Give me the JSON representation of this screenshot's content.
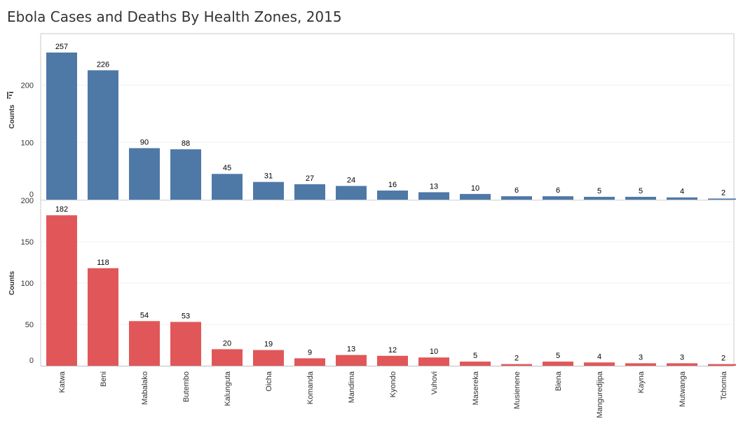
{
  "title": "Ebola Cases and Deaths By Health Zones, 2015",
  "chart_data": [
    {
      "type": "bar",
      "ylabel": "Counts",
      "ylim": [
        0,
        290
      ],
      "yticks": [
        0,
        100,
        200
      ],
      "color": "#4e79a7",
      "categories": [
        "Katwa",
        "Beni",
        "Mabalako",
        "Butembo",
        "Kalunguta",
        "Oicha",
        "Komanda",
        "Mandima",
        "Kyondo",
        "Vuhovi",
        "Masereka",
        "Musienene",
        "Biena",
        "Manguredjipa",
        "Kayna",
        "Mutwanga",
        "Tchomia"
      ],
      "values": [
        257,
        226,
        90,
        88,
        45,
        31,
        27,
        24,
        16,
        13,
        10,
        6,
        6,
        5,
        5,
        4,
        2
      ],
      "grid": true
    },
    {
      "type": "bar",
      "ylabel": "Counts",
      "ylim": [
        0,
        200
      ],
      "yticks": [
        0,
        50,
        100,
        150,
        200
      ],
      "color": "#e15759",
      "categories": [
        "Katwa",
        "Beni",
        "Mabalako",
        "Butembo",
        "Kalunguta",
        "Oicha",
        "Komanda",
        "Mandima",
        "Kyondo",
        "Vuhovi",
        "Masereka",
        "Musienene",
        "Biena",
        "Manguredjipa",
        "Kayna",
        "Mutwanga",
        "Tchomia"
      ],
      "values": [
        182,
        118,
        54,
        53,
        20,
        19,
        9,
        13,
        12,
        10,
        5,
        2,
        5,
        4,
        3,
        3,
        2
      ],
      "grid": true
    }
  ]
}
